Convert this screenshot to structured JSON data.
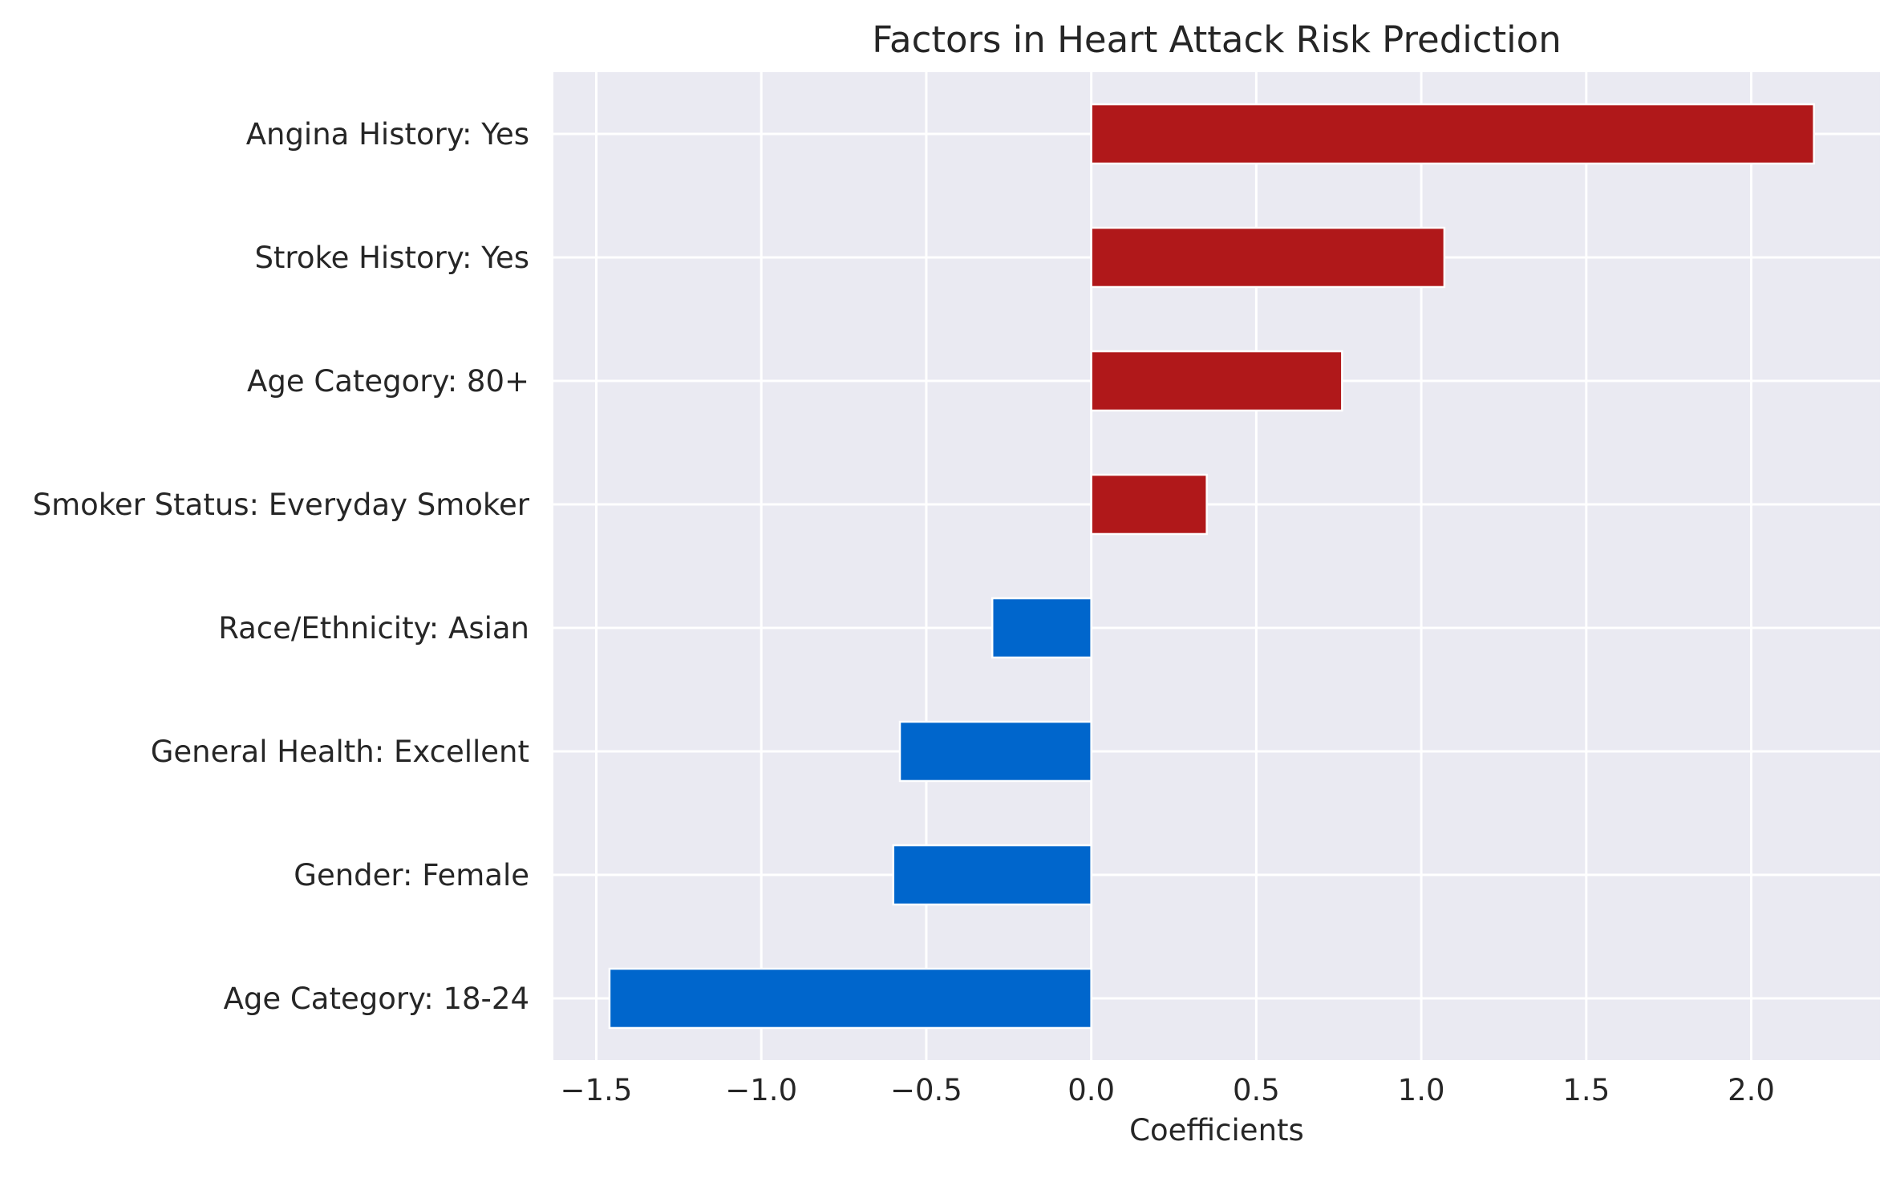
{
  "chart_data": {
    "type": "bar",
    "orientation": "horizontal",
    "title": "Factors in Heart Attack Risk Prediction",
    "xlabel": "Coefficients",
    "ylabel": "",
    "categories": [
      "Angina History: Yes",
      "Stroke History: Yes",
      "Age Category: 80+",
      "Smoker Status: Everyday Smoker",
      "Race/Ethnicity: Asian",
      "General Health: Excellent",
      "Gender: Female",
      "Age Category: 18-24"
    ],
    "values": [
      2.19,
      1.07,
      0.76,
      0.35,
      -0.3,
      -0.58,
      -0.6,
      -1.46
    ],
    "xlim": [
      -1.63,
      2.39
    ],
    "xticks": [
      -1.5,
      -1.0,
      -0.5,
      0.0,
      0.5,
      1.0,
      1.5,
      2.0
    ],
    "xtick_labels": [
      "−1.5",
      "−1.0",
      "−0.5",
      "0.0",
      "0.5",
      "1.0",
      "1.5",
      "2.0"
    ],
    "grid": true,
    "legend": "none",
    "colors": {
      "positive": "#b0181a",
      "negative": "#0066cc",
      "background": "#eaeaf2",
      "grid": "#ffffff"
    }
  }
}
